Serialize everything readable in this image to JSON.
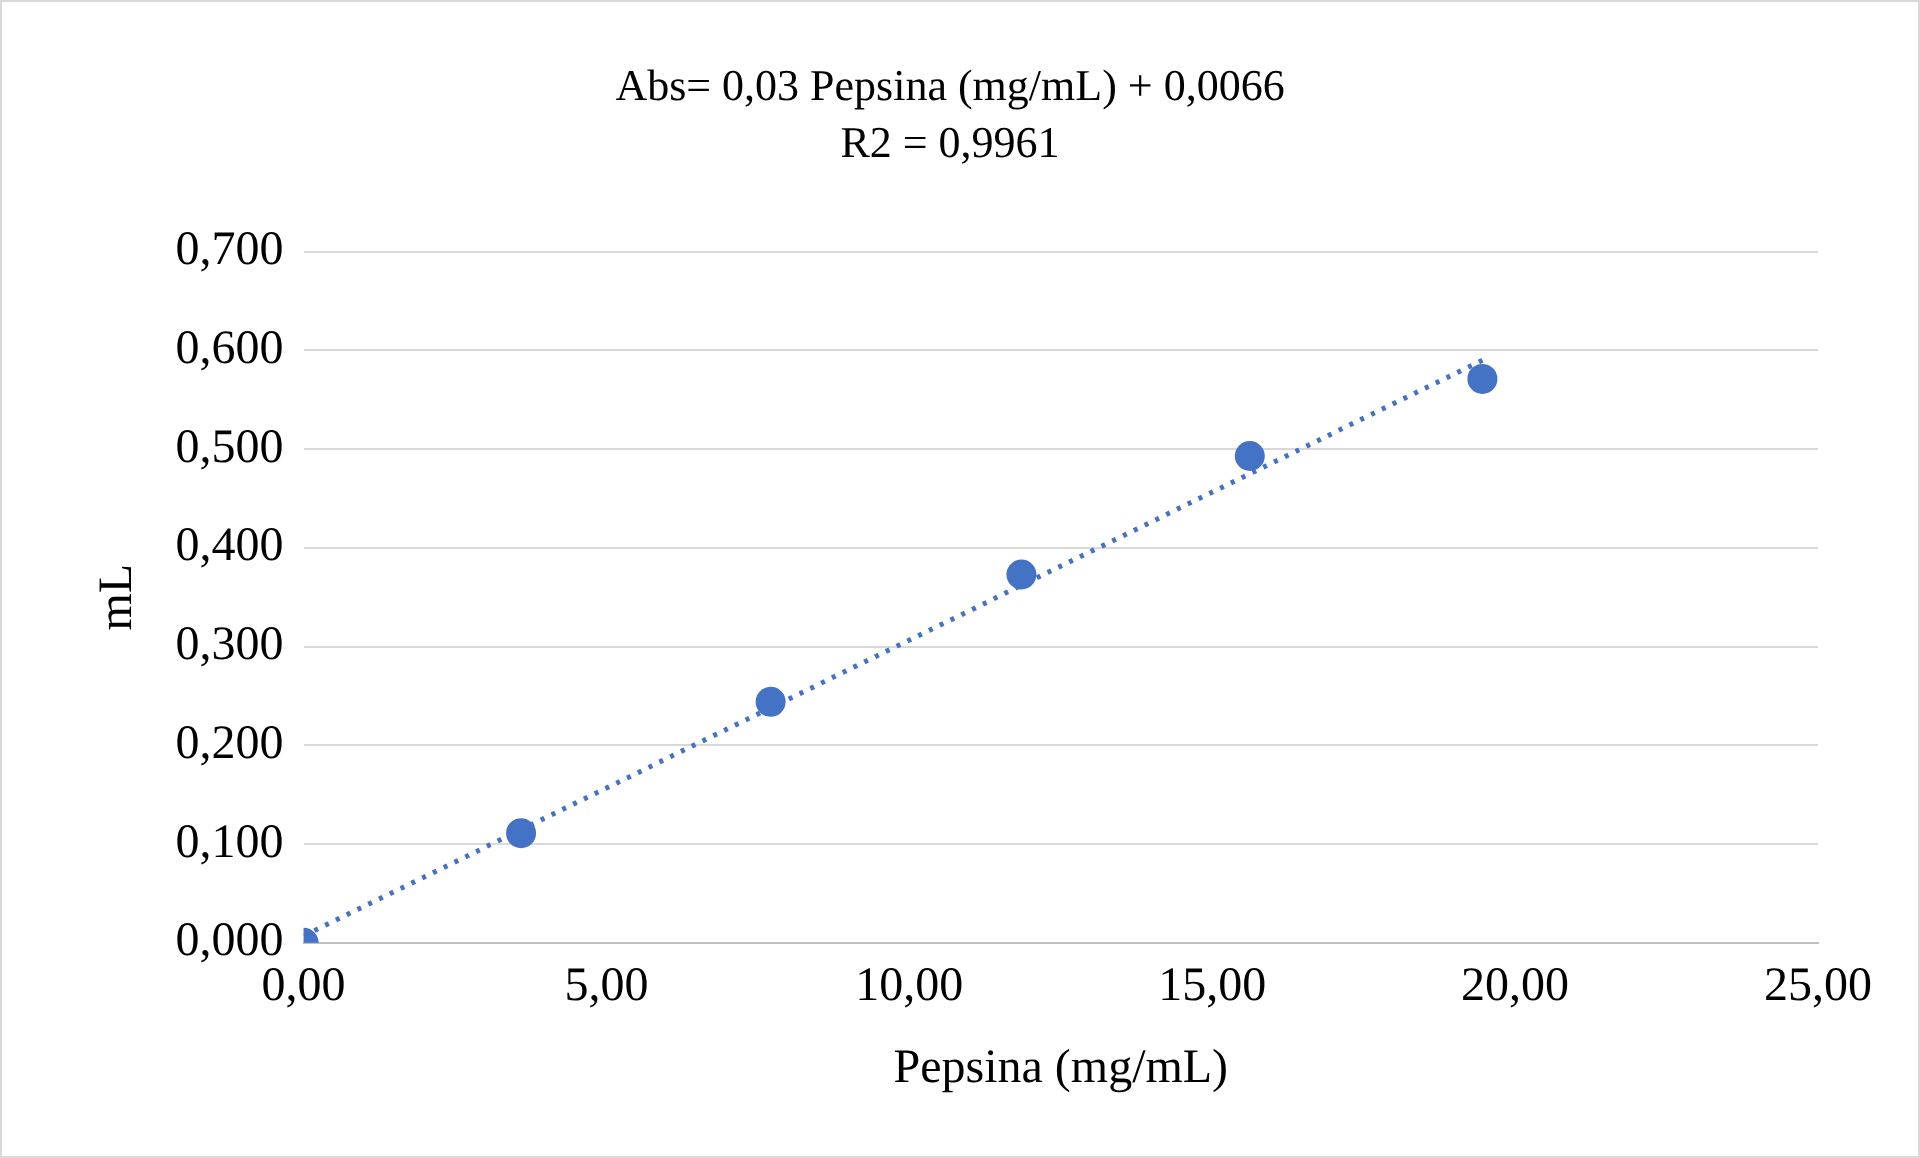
{
  "chart_data": {
    "type": "scatter",
    "title": "Abs= 0,03 Pepsina (mg/mL) + 0,0066",
    "subtitle": "R2 = 0,9961",
    "xlabel": "Pepsina (mg/mL)",
    "ylabel": "mL",
    "xlim": [
      0,
      25
    ],
    "xticks": [
      {
        "value": 0,
        "label": "0,00"
      },
      {
        "value": 5,
        "label": "5,00"
      },
      {
        "value": 10,
        "label": "10,00"
      },
      {
        "value": 15,
        "label": "15,00"
      },
      {
        "value": 20,
        "label": "20,00"
      },
      {
        "value": 25,
        "label": "25,00"
      }
    ],
    "ylim": [
      0,
      0.7
    ],
    "yticks": [
      {
        "value": 0,
        "label": "0,000"
      },
      {
        "value": 0.1,
        "label": "0,100"
      },
      {
        "value": 0.2,
        "label": "0,200"
      },
      {
        "value": 0.3,
        "label": "0,300"
      },
      {
        "value": 0.4,
        "label": "0,400"
      },
      {
        "value": 0.5,
        "label": "0,500"
      },
      {
        "value": 0.6,
        "label": "0,600"
      },
      {
        "value": 0.7,
        "label": "0,700"
      }
    ],
    "grid": "y",
    "series": [
      {
        "type": "scatter",
        "marker": "circle",
        "color": "#4472c4",
        "x": [
          0,
          3.59,
          7.71,
          11.85,
          15.62,
          19.46
        ],
        "values": [
          0,
          0.111,
          0.244,
          0.373,
          0.493,
          0.571
        ]
      },
      {
        "type": "line",
        "marker": "none",
        "color": "#4472c4",
        "line_style": "dotted",
        "x": [
          0,
          19.46
        ],
        "values": [
          0.007,
          0.59
        ]
      }
    ]
  }
}
